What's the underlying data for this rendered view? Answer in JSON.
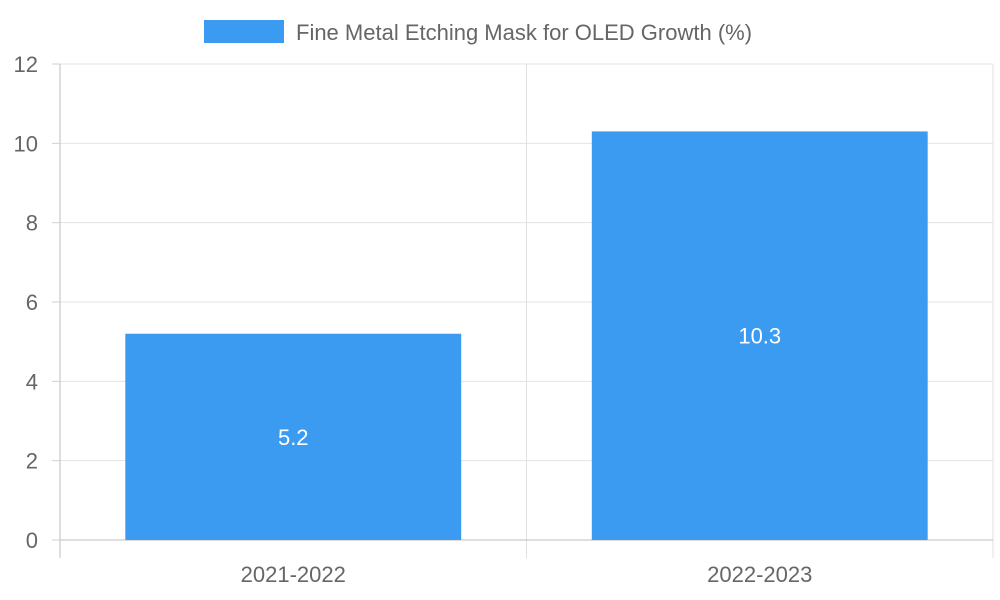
{
  "chart_data": {
    "type": "bar",
    "categories": [
      "2021-2022",
      "2022-2023"
    ],
    "series": [
      {
        "name": "Fine Metal Etching Mask for OLED Growth (%)",
        "values": [
          5.2,
          10.3
        ],
        "color": "#3a9bf0"
      }
    ],
    "data_labels": [
      "5.2",
      "10.3"
    ],
    "ylim": [
      0,
      12
    ],
    "y_ticks": [
      0,
      2,
      4,
      6,
      8,
      10,
      12
    ],
    "grid": true,
    "legend_position": "top-center"
  }
}
